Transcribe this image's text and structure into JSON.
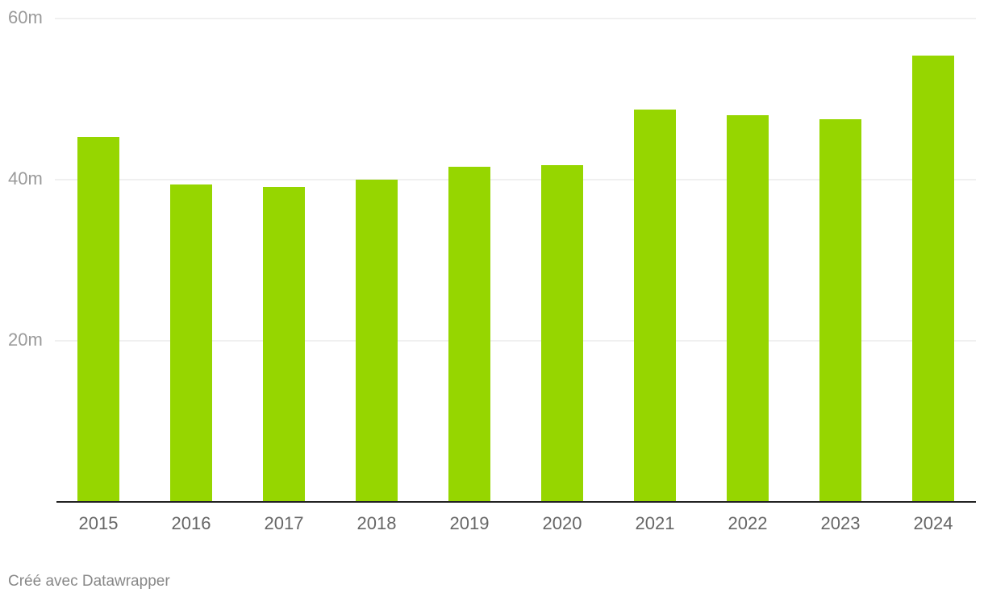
{
  "chart_data": {
    "type": "bar",
    "categories": [
      "2015",
      "2016",
      "2017",
      "2018",
      "2019",
      "2020",
      "2021",
      "2022",
      "2023",
      "2024"
    ],
    "values": [
      45.3,
      39.4,
      39.1,
      40.0,
      41.6,
      41.8,
      48.7,
      48.0,
      47.5,
      55.4
    ],
    "color": "#96d600",
    "ylim": [
      0,
      60
    ],
    "yticks": [
      {
        "value": 20,
        "label": "20m"
      },
      {
        "value": 40,
        "label": "40m"
      },
      {
        "value": 60,
        "label": "60m"
      }
    ],
    "grid": true,
    "credit": "Créé avec Datawrapper"
  }
}
